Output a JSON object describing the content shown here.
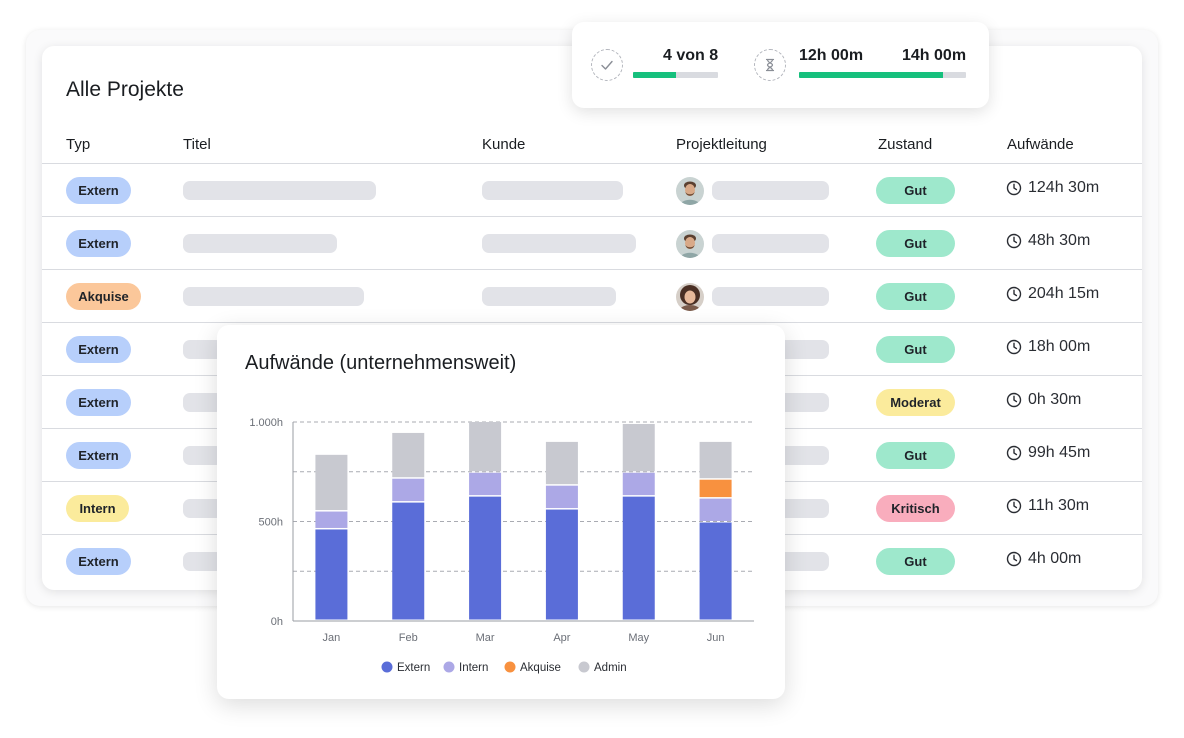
{
  "page": {
    "title": "Alle Projekte"
  },
  "columns": {
    "typ": "Typ",
    "titel": "Titel",
    "kunde": "Kunde",
    "projektleitung": "Projektleitung",
    "zustand": "Zustand",
    "aufwaende": "Aufwände"
  },
  "rows": [
    {
      "type": "Extern",
      "status": "Gut",
      "effort": "124h 30m",
      "avatar": "man-beard"
    },
    {
      "type": "Extern",
      "status": "Gut",
      "effort": "48h 30m",
      "avatar": "man-beard"
    },
    {
      "type": "Akquise",
      "status": "Gut",
      "effort": "204h 15m",
      "avatar": "woman-curly"
    },
    {
      "type": "Extern",
      "status": "Gut",
      "effort": "18h 00m"
    },
    {
      "type": "Extern",
      "status": "Moderat",
      "effort": "0h 30m"
    },
    {
      "type": "Extern",
      "status": "Gut",
      "effort": "99h 45m"
    },
    {
      "type": "Intern",
      "status": "Kritisch",
      "effort": "11h 30m"
    },
    {
      "type": "Extern",
      "status": "Gut",
      "effort": "4h 00m"
    }
  ],
  "stats": {
    "tasks": {
      "label": "4 von 8",
      "progress": 0.5,
      "icon": "check-icon"
    },
    "time": {
      "spent": "12h 00m",
      "budget": "14h 00m",
      "progress": 0.86,
      "icon": "hourglass-icon"
    }
  },
  "colors": {
    "type": {
      "Extern": "#b7cffb",
      "Akquise": "#fbc79a",
      "Intern": "#fbeb9c"
    },
    "status": {
      "Gut": "#9ee8cc",
      "Moderat": "#fbeb9c",
      "Kritisch": "#f9adbd"
    }
  },
  "chart_data": {
    "type": "bar",
    "stacked": true,
    "title": "Aufwände (unternehmensweit)",
    "categories": [
      "Jan",
      "Feb",
      "Mar",
      "Apr",
      "May",
      "Jun"
    ],
    "series": [
      {
        "name": "Extern",
        "color": "#5a6dd8",
        "values": [
          460,
          595,
          625,
          560,
          625,
          495
        ]
      },
      {
        "name": "Intern",
        "color": "#aca8e6",
        "values": [
          90,
          120,
          120,
          120,
          120,
          120
        ]
      },
      {
        "name": "Akquise",
        "color": "#f8913f",
        "values": [
          0,
          0,
          0,
          0,
          0,
          95
        ]
      },
      {
        "name": "Admin",
        "color": "#c8c9d0",
        "values": [
          285,
          230,
          255,
          220,
          245,
          190
        ]
      }
    ],
    "yticks": [
      "0h",
      "500h",
      "1.000h"
    ],
    "ytick_values": [
      0,
      500,
      1000
    ],
    "ylim": [
      0,
      1000
    ],
    "grid": true,
    "legend": "bottom"
  }
}
